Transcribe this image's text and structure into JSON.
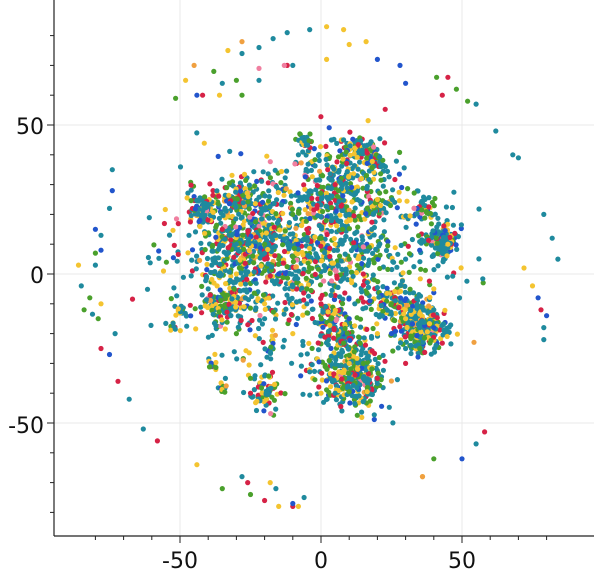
{
  "chart_data": {
    "type": "scatter",
    "title": "",
    "xlabel": "",
    "ylabel": "",
    "xlim": [
      -90,
      90
    ],
    "ylim": [
      -90,
      90
    ],
    "x_ticks": [
      -50,
      0,
      50
    ],
    "y_ticks": [
      -50,
      0,
      50
    ],
    "x_tick_labels": [
      "-50",
      "0",
      "50"
    ],
    "y_tick_labels": [
      "-50",
      "0",
      "50"
    ],
    "grid": true,
    "palette": [
      "#1f8a9e",
      "#4aa02c",
      "#f4c430",
      "#d62246",
      "#2255cc",
      "#f07fa0",
      "#f0a040"
    ],
    "series": [
      {
        "color": "#1f8a9e",
        "points": [
          [
            -28,
            74
          ],
          [
            -22,
            76
          ],
          [
            -17,
            79
          ],
          [
            -12,
            81
          ],
          [
            -4,
            82
          ],
          [
            -35,
            64
          ],
          [
            -22,
            65
          ],
          [
            -10,
            70
          ],
          [
            -85,
            -4
          ],
          [
            -80,
            3
          ],
          [
            -78,
            13
          ],
          [
            -75,
            22
          ],
          [
            -74,
            35
          ],
          [
            -73,
            -20
          ],
          [
            -68,
            -42
          ],
          [
            -63,
            -52
          ],
          [
            55,
            57
          ],
          [
            62,
            48
          ],
          [
            68,
            40
          ],
          [
            70,
            39
          ],
          [
            79,
            20
          ],
          [
            82,
            12
          ],
          [
            84,
            5
          ],
          [
            79,
            -18
          ],
          [
            79,
            -22
          ],
          [
            55,
            -57
          ],
          [
            -28,
            -68
          ],
          [
            -16,
            -72
          ],
          [
            -6,
            -75
          ],
          [
            30,
            -25
          ],
          [
            35,
            -18
          ],
          [
            40,
            -12
          ],
          [
            30,
            5
          ],
          [
            18,
            15
          ],
          [
            10,
            20
          ],
          [
            -5,
            25
          ],
          [
            -15,
            18
          ],
          [
            -30,
            10
          ],
          [
            -40,
            -5
          ],
          [
            -42,
            20
          ],
          [
            -20,
            -15
          ],
          [
            -5,
            -10
          ],
          [
            5,
            -40
          ],
          [
            15,
            -35
          ],
          [
            12,
            -10
          ],
          [
            -8,
            40
          ],
          [
            8,
            45
          ]
        ]
      },
      {
        "color": "#4aa02c",
        "points": [
          [
            -38,
            68
          ],
          [
            -30,
            65
          ],
          [
            -28,
            60
          ],
          [
            -80,
            7
          ],
          [
            -82,
            -8
          ],
          [
            -84,
            -12
          ],
          [
            -79,
            -15
          ],
          [
            48,
            62
          ],
          [
            52,
            58
          ],
          [
            41,
            66
          ],
          [
            40,
            -62
          ],
          [
            -35,
            -72
          ],
          [
            -25,
            -74
          ],
          [
            -20,
            10
          ],
          [
            -5,
            -5
          ],
          [
            10,
            5
          ],
          [
            25,
            -10
          ],
          [
            -30,
            -20
          ],
          [
            -25,
            -35
          ],
          [
            15,
            -30
          ],
          [
            35,
            -25
          ],
          [
            -10,
            20
          ]
        ]
      },
      {
        "color": "#f4c430",
        "points": [
          [
            2,
            83
          ],
          [
            8,
            82
          ],
          [
            10,
            77
          ],
          [
            16,
            78
          ],
          [
            -48,
            65
          ],
          [
            -36,
            60
          ],
          [
            -33,
            75
          ],
          [
            2,
            72
          ],
          [
            -86,
            3
          ],
          [
            -78,
            -10
          ],
          [
            72,
            2
          ],
          [
            75,
            -4
          ],
          [
            36,
            -68
          ],
          [
            -44,
            -64
          ],
          [
            -15,
            -78
          ],
          [
            -18,
            -70
          ],
          [
            -8,
            -78
          ],
          [
            0,
            -40
          ],
          [
            10,
            -30
          ],
          [
            20,
            -20
          ],
          [
            30,
            -15
          ],
          [
            -20,
            -10
          ],
          [
            -30,
            0
          ],
          [
            5,
            10
          ],
          [
            40,
            -5
          ],
          [
            45,
            10
          ],
          [
            -10,
            -20
          ],
          [
            20,
            25
          ]
        ]
      },
      {
        "color": "#d62246",
        "points": [
          [
            -42,
            60
          ],
          [
            -12,
            70
          ],
          [
            -26,
            -70
          ],
          [
            -20,
            -76
          ],
          [
            -10,
            -78
          ],
          [
            -72,
            -36
          ],
          [
            -58,
            -56
          ],
          [
            -78,
            -25
          ],
          [
            45,
            66
          ],
          [
            43,
            60
          ],
          [
            58,
            -53
          ],
          [
            78,
            -12
          ],
          [
            -20,
            5
          ],
          [
            -5,
            15
          ],
          [
            15,
            0
          ],
          [
            30,
            -30
          ],
          [
            -35,
            15
          ],
          [
            0,
            -10
          ],
          [
            5,
            30
          ],
          [
            -25,
            -40
          ],
          [
            20,
            -35
          ]
        ]
      },
      {
        "color": "#2255cc",
        "points": [
          [
            20,
            72
          ],
          [
            28,
            70
          ],
          [
            30,
            64
          ],
          [
            -44,
            60
          ],
          [
            -80,
            15
          ],
          [
            -74,
            28
          ],
          [
            -75,
            -27
          ],
          [
            -78,
            8
          ],
          [
            77,
            -8
          ],
          [
            80,
            -14
          ],
          [
            50,
            -62
          ],
          [
            -10,
            -77
          ],
          [
            35,
            8
          ],
          [
            25,
            -20
          ],
          [
            10,
            -15
          ],
          [
            -15,
            0
          ],
          [
            40,
            -18
          ]
        ]
      },
      {
        "color": "#f07fa0",
        "points": [
          [
            -22,
            69
          ],
          [
            -13,
            70
          ]
        ]
      },
      {
        "color": "#f0a040",
        "points": [
          [
            -28,
            78
          ],
          [
            -45,
            70
          ],
          [
            36,
            -68
          ]
        ]
      }
    ],
    "clusters": [
      {
        "cx": -8,
        "cy": 8,
        "rx": 40,
        "ry": 26,
        "n": 1200
      },
      {
        "cx": -28,
        "cy": 12,
        "rx": 14,
        "ry": 14,
        "n": 260
      },
      {
        "cx": 8,
        "cy": 30,
        "rx": 14,
        "ry": 14,
        "n": 220
      },
      {
        "cx": 10,
        "cy": -35,
        "rx": 11,
        "ry": 9,
        "n": 320
      },
      {
        "cx": 8,
        "cy": -22,
        "rx": 8,
        "ry": 6,
        "n": 90
      },
      {
        "cx": 36,
        "cy": -18,
        "rx": 8,
        "ry": 7,
        "n": 260
      },
      {
        "cx": 28,
        "cy": -10,
        "rx": 8,
        "ry": 6,
        "n": 120
      },
      {
        "cx": 43,
        "cy": 11,
        "rx": 5,
        "ry": 5,
        "n": 150
      },
      {
        "cx": 36,
        "cy": 22,
        "rx": 4,
        "ry": 3,
        "n": 40
      },
      {
        "cx": 14,
        "cy": 42,
        "rx": 5,
        "ry": 3,
        "n": 80
      },
      {
        "cx": -5,
        "cy": 44,
        "rx": 2,
        "ry": 3,
        "n": 30
      },
      {
        "cx": 20,
        "cy": 38,
        "rx": 3,
        "ry": 3,
        "n": 30
      },
      {
        "cx": 20,
        "cy": 22,
        "rx": 4,
        "ry": 2,
        "n": 35
      },
      {
        "cx": -50,
        "cy": -12,
        "rx": 2,
        "ry": 2,
        "n": 18
      },
      {
        "cx": -52,
        "cy": -18,
        "rx": 1.5,
        "ry": 2,
        "n": 10
      },
      {
        "cx": -38,
        "cy": -30,
        "rx": 2,
        "ry": 2,
        "n": 14
      },
      {
        "cx": -35,
        "cy": -38,
        "rx": 2,
        "ry": 2,
        "n": 10
      },
      {
        "cx": -20,
        "cy": -40,
        "rx": 5,
        "ry": 7,
        "n": 70
      },
      {
        "cx": -18,
        "cy": -25,
        "rx": 2,
        "ry": 3,
        "n": 12
      },
      {
        "cx": 5,
        "cy": -15,
        "rx": 6,
        "ry": 4,
        "n": 50
      },
      {
        "cx": -30,
        "cy": 25,
        "rx": 6,
        "ry": 4,
        "n": 90
      },
      {
        "cx": -42,
        "cy": 22,
        "rx": 4,
        "ry": 4,
        "n": 60
      },
      {
        "cx": -35,
        "cy": -10,
        "rx": 8,
        "ry": 6,
        "n": 110
      }
    ]
  }
}
